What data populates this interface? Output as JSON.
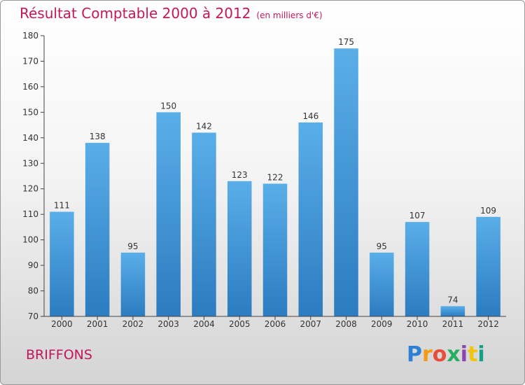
{
  "header": {
    "title": "Résultat Comptable 2000 à 2012",
    "subtitle": "(en milliers d'€)"
  },
  "footer": {
    "town": "BRIFFONS",
    "logo_letters": [
      "P",
      "r",
      "o",
      "x",
      "i",
      "t",
      "i"
    ],
    "logo_colors": [
      "#2e7fd6",
      "#f39c12",
      "#e74c3c",
      "#27ae60",
      "#8e44ad",
      "#f1c40f",
      "#16a085"
    ]
  },
  "colors": {
    "bar_light": "#5aaee8",
    "bar_dark": "#2b7cc0",
    "axis": "#444444",
    "text": "#333333",
    "accent": "#c2185b"
  },
  "chart_data": {
    "type": "bar",
    "title": "Résultat Comptable 2000 à 2012",
    "subtitle": "(en milliers d'€)",
    "categories": [
      "2000",
      "2001",
      "2002",
      "2003",
      "2004",
      "2005",
      "2006",
      "2007",
      "2008",
      "2009",
      "2010",
      "2011",
      "2012"
    ],
    "values": [
      111,
      138,
      95,
      150,
      142,
      123,
      122,
      146,
      175,
      95,
      107,
      74,
      109
    ],
    "ylim": [
      70,
      180
    ],
    "yticks": [
      70,
      80,
      90,
      100,
      110,
      120,
      130,
      140,
      150,
      160,
      170,
      180
    ],
    "grid": false,
    "legend": "none"
  }
}
